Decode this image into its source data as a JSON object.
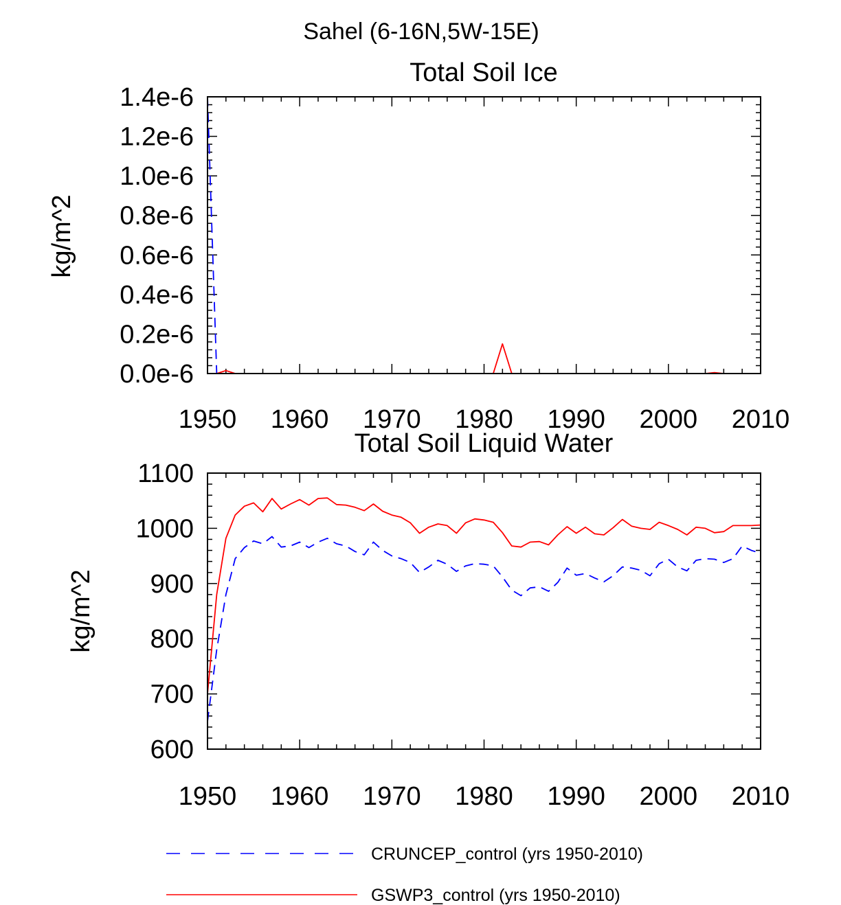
{
  "figure_title": "Sahel (6-16N,5W-15E)",
  "legend": [
    {
      "label": "CRUNCEP_control (yrs 1950-2010)",
      "color": "#0000ff",
      "dash": "dashed"
    },
    {
      "label": "GSWP3_control (yrs 1950-2010)",
      "color": "#ff0000",
      "dash": "solid"
    }
  ],
  "chart_data": [
    {
      "type": "line",
      "title": "Total Soil Ice",
      "xlabel": "",
      "ylabel": "kg/m^2",
      "xlim": [
        1950,
        2010
      ],
      "ylim": [
        0,
        1.4e-06
      ],
      "xticks": [
        1950,
        1960,
        1970,
        1980,
        1990,
        2000,
        2010
      ],
      "xtick_labels": [
        "1950",
        "1960",
        "1970",
        "1980",
        "1990",
        "2000",
        "2010"
      ],
      "yticks": [
        0,
        2e-07,
        4e-07,
        6e-07,
        8e-07,
        1e-06,
        1.2e-06,
        1.4e-06
      ],
      "ytick_labels": [
        "0.0e-6",
        "0.2e-6",
        "0.4e-6",
        "0.6e-6",
        "0.8e-6",
        "1.0e-6",
        "1.2e-6",
        "1.4e-6"
      ],
      "grid": false,
      "series": [
        {
          "name": "CRUNCEP_control",
          "color": "#0000ff",
          "dash": "dashed",
          "x": [
            1950,
            1951,
            1952,
            2010
          ],
          "y": [
            1.4e-06,
            0,
            0,
            0
          ]
        },
        {
          "name": "GSWP3_control",
          "color": "#ff0000",
          "dash": "solid",
          "x": [
            1951,
            1952,
            1953,
            1981,
            1982,
            1983,
            2004,
            2005,
            2006
          ],
          "y": [
            0,
            1.5e-08,
            0,
            0,
            1.5e-07,
            0,
            0,
            5e-09,
            0
          ]
        }
      ]
    },
    {
      "type": "line",
      "title": "Total Soil Liquid Water",
      "xlabel": "",
      "ylabel": "kg/m^2",
      "xlim": [
        1950,
        2010
      ],
      "ylim": [
        600,
        1100
      ],
      "xticks": [
        1950,
        1960,
        1970,
        1980,
        1990,
        2000,
        2010
      ],
      "xtick_labels": [
        "1950",
        "1960",
        "1970",
        "1980",
        "1990",
        "2000",
        "2010"
      ],
      "yticks": [
        600,
        700,
        800,
        900,
        1000,
        1100
      ],
      "ytick_labels": [
        "600",
        "700",
        "800",
        "900",
        "1000",
        "1100"
      ],
      "grid": false,
      "series": [
        {
          "name": "CRUNCEP_control",
          "color": "#0000ff",
          "dash": "dashed",
          "x": [
            1950,
            1951,
            1952,
            1953,
            1954,
            1955,
            1956,
            1957,
            1958,
            1959,
            1960,
            1961,
            1962,
            1963,
            1964,
            1965,
            1966,
            1967,
            1968,
            1969,
            1970,
            1971,
            1972,
            1973,
            1974,
            1975,
            1976,
            1977,
            1978,
            1979,
            1980,
            1981,
            1982,
            1983,
            1984,
            1985,
            1986,
            1987,
            1988,
            1989,
            1990,
            1991,
            1992,
            1993,
            1994,
            1995,
            1996,
            1997,
            1998,
            1999,
            2000,
            2001,
            2002,
            2003,
            2004,
            2005,
            2006,
            2007,
            2008,
            2009,
            2010
          ],
          "y": [
            650,
            780,
            880,
            945,
            965,
            977,
            972,
            985,
            966,
            968,
            975,
            965,
            975,
            982,
            972,
            968,
            958,
            952,
            975,
            960,
            950,
            945,
            938,
            920,
            930,
            942,
            935,
            922,
            932,
            936,
            935,
            932,
            912,
            888,
            878,
            892,
            894,
            886,
            902,
            928,
            915,
            918,
            910,
            903,
            914,
            930,
            928,
            924,
            914,
            936,
            944,
            930,
            923,
            942,
            945,
            944,
            938,
            945,
            968,
            960,
            955
          ]
        },
        {
          "name": "GSWP3_control",
          "color": "#ff0000",
          "dash": "solid",
          "x": [
            1950,
            1951,
            1952,
            1953,
            1954,
            1955,
            1956,
            1957,
            1958,
            1959,
            1960,
            1961,
            1962,
            1963,
            1964,
            1965,
            1966,
            1967,
            1968,
            1969,
            1970,
            1971,
            1972,
            1973,
            1974,
            1975,
            1976,
            1977,
            1978,
            1979,
            1980,
            1981,
            1982,
            1983,
            1984,
            1985,
            1986,
            1987,
            1988,
            1989,
            1990,
            1991,
            1992,
            1993,
            1994,
            1995,
            1996,
            1997,
            1998,
            1999,
            2000,
            2001,
            2002,
            2003,
            2004,
            2005,
            2006,
            2007,
            2008,
            2009,
            2010
          ],
          "y": [
            700,
            880,
            982,
            1024,
            1040,
            1046,
            1030,
            1054,
            1035,
            1044,
            1052,
            1042,
            1054,
            1055,
            1043,
            1042,
            1038,
            1032,
            1044,
            1031,
            1024,
            1020,
            1010,
            991,
            1002,
            1008,
            1005,
            991,
            1010,
            1017,
            1015,
            1011,
            992,
            968,
            966,
            975,
            976,
            970,
            988,
            1003,
            991,
            1002,
            990,
            988,
            1001,
            1016,
            1004,
            1000,
            998,
            1011,
            1005,
            998,
            988,
            1002,
            1000,
            992,
            994,
            1005,
            1005,
            1005,
            1006
          ]
        }
      ]
    }
  ]
}
